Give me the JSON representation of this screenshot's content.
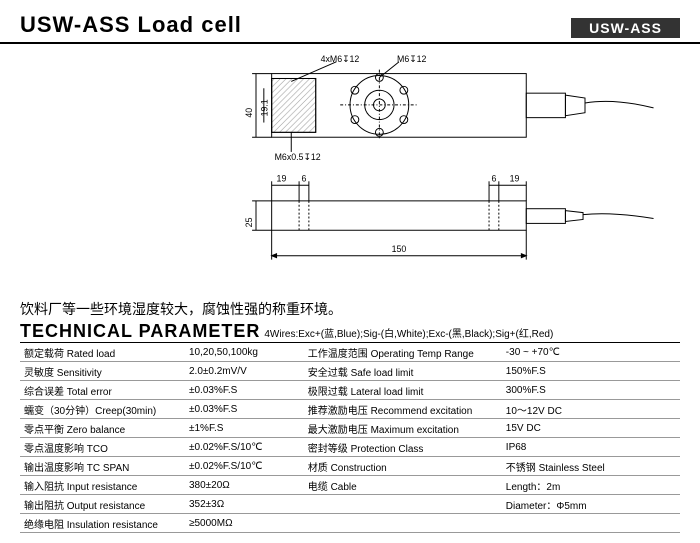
{
  "header": {
    "title": "USW-ASS  Load cell",
    "badge": "USW-ASS"
  },
  "diagram": {
    "top_labels": {
      "a": "4xM6↧12",
      "b": "M6↧12"
    },
    "left_dim_outer": "40",
    "left_dim_inner": "19.1",
    "bottom_dim": "M6x0.5↧12",
    "side_dims": {
      "a": "19",
      "b": "6",
      "c": "6",
      "d": "19"
    },
    "side_height": "25",
    "bottom_length": "150"
  },
  "description": "饮料厂等一些环境湿度较大，腐蚀性强的称重环境。",
  "tech_title": "TECHNICAL PARAMETER",
  "wires": "4Wires:Exc+(蓝,Blue);Sig-(白,White);Exc-(黑,Black);Sig+(红,Red)",
  "params": [
    [
      "额定载荷 Rated load",
      "10,20,50,100kg",
      "工作温度范围 Operating Temp Range",
      "-30 ~ +70℃"
    ],
    [
      "灵敏度 Sensitivity",
      "2.0±0.2mV/V",
      "安全过载 Safe load limit",
      "150%F.S"
    ],
    [
      "综合误差 Total error",
      "±0.03%F.S",
      "极限过载 Lateral load limit",
      "300%F.S"
    ],
    [
      "蠕变（30分钟）Creep(30min)",
      "±0.03%F.S",
      "推荐激励电压 Recommend excitation",
      "10～12V DC"
    ],
    [
      "零点平衡 Zero balance",
      "±1%F.S",
      "最大激励电压 Maximum excitation",
      "15V DC"
    ],
    [
      "零点温度影响 TCO",
      "±0.02%F.S/10℃",
      "密封等级 Protection Class",
      "IP68"
    ],
    [
      "输出温度影响 TC SPAN",
      "±0.02%F.S/10℃",
      "材质 Construction",
      "不锈钢 Stainless Steel"
    ],
    [
      "输入阻抗 Input resistance",
      "380±20Ω",
      "电缆  Cable",
      "Length：2m"
    ],
    [
      "输出阻抗 Output resistance",
      "352±3Ω",
      "",
      "Diameter：Φ5mm"
    ],
    [
      "绝缘电阻 Insulation resistance",
      "≥5000MΩ",
      "",
      ""
    ]
  ]
}
